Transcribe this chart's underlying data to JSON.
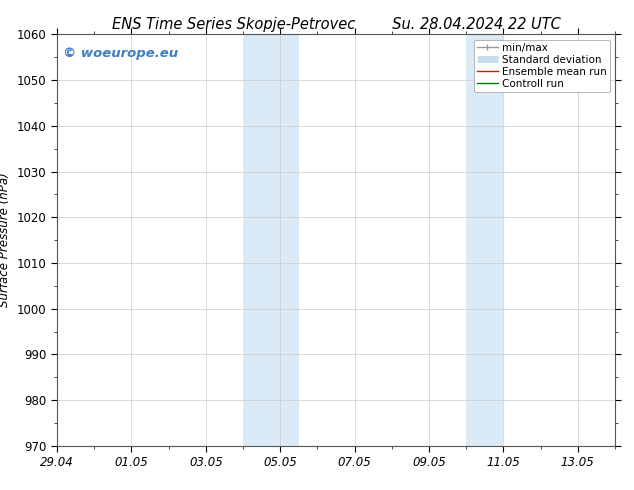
{
  "title_left": "ENS Time Series Skopje-Petrovec",
  "title_right": "Su. 28.04.2024 22 UTC",
  "ylabel": "Surface Pressure (hPa)",
  "ylim": [
    970,
    1060
  ],
  "yticks": [
    970,
    980,
    990,
    1000,
    1010,
    1020,
    1030,
    1040,
    1050,
    1060
  ],
  "xtick_labels": [
    "29.04",
    "01.05",
    "03.05",
    "05.05",
    "07.05",
    "09.05",
    "11.05",
    "13.05"
  ],
  "xtick_positions": [
    0,
    2,
    4,
    6,
    8,
    10,
    12,
    14
  ],
  "xlim": [
    0,
    15
  ],
  "shaded_regions": [
    {
      "start": 5.0,
      "end": 6.5
    },
    {
      "start": 11.0,
      "end": 12.0
    }
  ],
  "shaded_color": "#daeaf7",
  "watermark_text": "© woeurope.eu",
  "watermark_color": "#3b7fc4",
  "legend_items": [
    {
      "label": "min/max",
      "color": "#999999",
      "lw": 1.0,
      "style": "solid"
    },
    {
      "label": "Standard deviation",
      "color": "#c8dcee",
      "lw": 5,
      "style": "solid"
    },
    {
      "label": "Ensemble mean run",
      "color": "red",
      "lw": 1.0,
      "style": "solid"
    },
    {
      "label": "Controll run",
      "color": "green",
      "lw": 1.0,
      "style": "solid"
    }
  ],
  "bg_color": "white",
  "grid_color": "#cccccc",
  "tick_label_fontsize": 8.5,
  "title_fontsize": 10.5,
  "ylabel_fontsize": 8.5,
  "watermark_fontsize": 9.5
}
